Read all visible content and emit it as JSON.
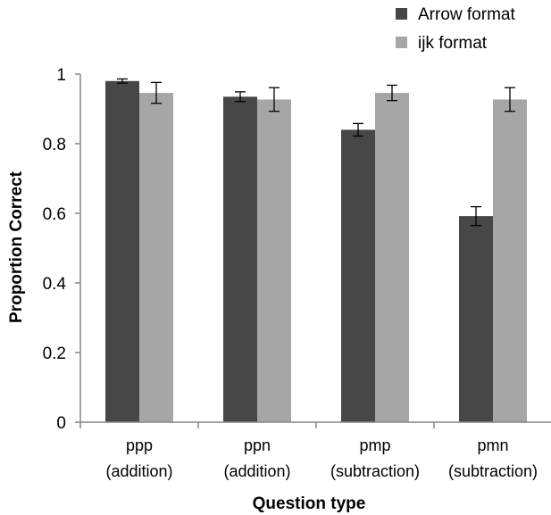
{
  "chart_data": {
    "type": "bar",
    "categories": [
      [
        "ppp",
        "(addition)"
      ],
      [
        "ppn",
        "(addition)"
      ],
      [
        "pmp",
        "(subtraction)"
      ],
      [
        "pmn",
        "(subtraction)"
      ]
    ],
    "series": [
      {
        "name": "Arrow format",
        "color": "#474747",
        "values": [
          0.98,
          0.935,
          0.84,
          0.592
        ],
        "errors": [
          0.006,
          0.014,
          0.018,
          0.027
        ]
      },
      {
        "name": "ijk format",
        "color": "#a6a6a6",
        "values": [
          0.946,
          0.927,
          0.946,
          0.927
        ],
        "errors": [
          0.03,
          0.034,
          0.022,
          0.034
        ]
      }
    ],
    "yticks": [
      "0",
      "0.2",
      "0.4",
      "0.6",
      "0.8",
      "1"
    ],
    "ylim": [
      0,
      1
    ],
    "xlabel": "Question type",
    "ylabel": "Proportion Correct",
    "title": "",
    "grid": false,
    "legend_position": "top-right"
  }
}
